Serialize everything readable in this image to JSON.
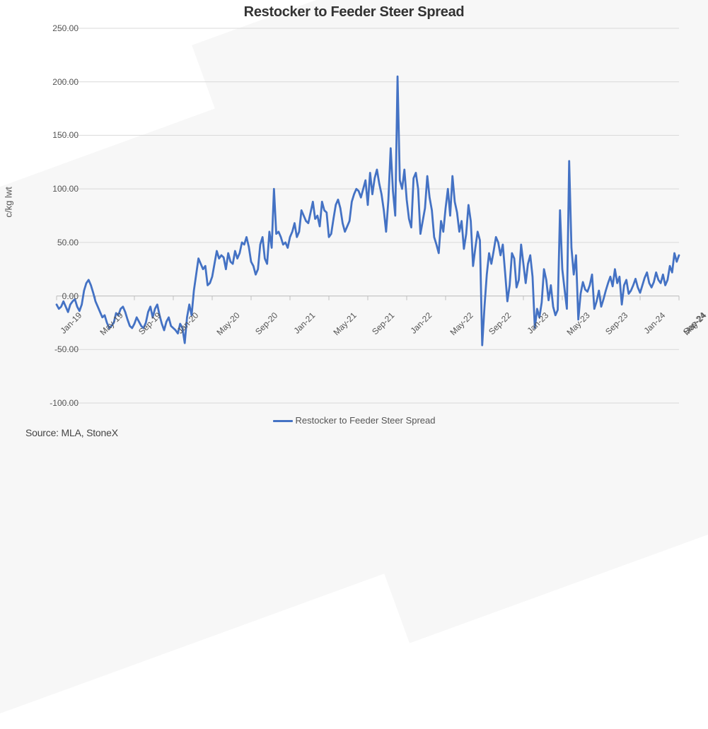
{
  "chart": {
    "type": "line",
    "title": "Restocker to Feeder Steer Spread",
    "title_fontsize": 20,
    "ylabel": "c/kg lwt",
    "label_fontsize": 13,
    "source": "Source: MLA, StoneX",
    "legend_label": "Restocker to Feeder Steer Spread",
    "background_color": "#ffffff",
    "bg_accent_color": "#f7f7f7",
    "grid_color": "#d9d9d9",
    "axis_line_color": "#bfbfbf",
    "text_color": "#555555",
    "line_color": "#4472c4",
    "line_width": 2.8,
    "ylim": [
      -100,
      250
    ],
    "ytick_step": 50,
    "yticks": [
      -100,
      -50,
      0,
      50,
      100,
      150,
      200,
      250
    ],
    "ytick_labels": [
      "-100.00",
      "-50.00",
      "0.00",
      "50.00",
      "100.00",
      "150.00",
      "200.00",
      "250.00"
    ],
    "x_categories": [
      "Jan-19",
      "May-19",
      "Sep-19",
      "Jan-20",
      "May-20",
      "Sep-20",
      "Jan-21",
      "May-21",
      "Sep-21",
      "Jan-22",
      "May-22",
      "Sep-22",
      "Jan-23",
      "May-23",
      "Sep-23",
      "Jan-24",
      "May-24",
      "Sep-24"
    ],
    "x_major_interval_weeks": 17,
    "values": [
      -8,
      -12,
      -10,
      -5,
      -10,
      -15,
      -8,
      -5,
      -3,
      -10,
      -14,
      -8,
      5,
      12,
      15,
      10,
      3,
      -5,
      -10,
      -15,
      -20,
      -18,
      -25,
      -30,
      -28,
      -25,
      -16,
      -18,
      -12,
      -10,
      -15,
      -22,
      -28,
      -30,
      -26,
      -20,
      -24,
      -28,
      -30,
      -25,
      -15,
      -10,
      -20,
      -12,
      -8,
      -18,
      -26,
      -32,
      -24,
      -20,
      -28,
      -30,
      -32,
      -35,
      -26,
      -30,
      -44,
      -20,
      -8,
      -18,
      5,
      20,
      35,
      30,
      25,
      28,
      10,
      12,
      18,
      30,
      42,
      35,
      38,
      36,
      25,
      40,
      32,
      30,
      42,
      35,
      40,
      50,
      48,
      55,
      46,
      32,
      28,
      20,
      25,
      48,
      55,
      35,
      30,
      60,
      45,
      100,
      58,
      60,
      55,
      48,
      50,
      45,
      55,
      60,
      68,
      55,
      60,
      80,
      75,
      70,
      68,
      78,
      88,
      72,
      75,
      65,
      88,
      80,
      78,
      55,
      58,
      72,
      85,
      90,
      82,
      68,
      60,
      65,
      70,
      88,
      95,
      100,
      98,
      92,
      100,
      108,
      85,
      115,
      95,
      110,
      118,
      105,
      95,
      80,
      60,
      90,
      138,
      98,
      75,
      205,
      108,
      100,
      118,
      90,
      72,
      64,
      110,
      115,
      100,
      58,
      70,
      82,
      112,
      92,
      80,
      55,
      48,
      40,
      70,
      60,
      82,
      100,
      75,
      112,
      88,
      78,
      60,
      70,
      44,
      58,
      85,
      70,
      28,
      45,
      60,
      52,
      -46,
      -10,
      20,
      40,
      30,
      42,
      55,
      50,
      38,
      48,
      22,
      -5,
      10,
      40,
      35,
      8,
      15,
      48,
      30,
      12,
      30,
      38,
      18,
      -30,
      -12,
      -20,
      -6,
      25,
      15,
      -4,
      10,
      -10,
      -18,
      -13,
      80,
      25,
      6,
      -12,
      126,
      45,
      20,
      38,
      -22,
      2,
      13,
      6,
      4,
      10,
      20,
      -12,
      -5,
      5,
      -10,
      -3,
      5,
      12,
      18,
      9,
      25,
      12,
      18,
      -8,
      10,
      15,
      2,
      5,
      10,
      16,
      8,
      3,
      10,
      17,
      22,
      12,
      8,
      13,
      22,
      15,
      12,
      20,
      10,
      15,
      28,
      22,
      40,
      32,
      38
    ]
  }
}
